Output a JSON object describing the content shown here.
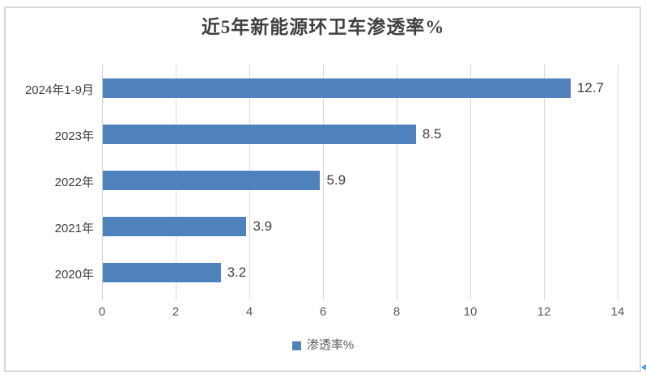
{
  "window": {
    "background": "#ffffff",
    "frame_border_color": "#d9d9d9"
  },
  "chart_data": {
    "type": "bar",
    "orientation": "horizontal",
    "title": "近5年新能源环卫车渗透率%",
    "categories": [
      "2024年1-9月",
      "2023年",
      "2022年",
      "2021年",
      "2020年"
    ],
    "values": [
      12.7,
      8.5,
      5.9,
      3.9,
      3.2
    ],
    "data_labels": [
      "12.7",
      "8.5",
      "5.9",
      "3.9",
      "3.2"
    ],
    "xlabel": "",
    "ylabel": "",
    "xlim": [
      0,
      14
    ],
    "xticks": [
      "0",
      "2",
      "4",
      "6",
      "8",
      "10",
      "12",
      "14"
    ],
    "grid": true,
    "legend": {
      "position": "bottom",
      "entries": [
        {
          "label": "渗透率%",
          "color": "#4f81bd"
        }
      ]
    },
    "colors": {
      "bar": "#4f81bd",
      "gridline": "#d9d9d9",
      "axis_line": "#d0d0d0",
      "title_text": "#404040",
      "category_text": "#404040",
      "value_text": "#404040",
      "tick_text": "#595959",
      "legend_text": "#595959"
    }
  },
  "decorations": {
    "corner_marker": "blue-cursor-arrow",
    "corner_marker_color": "#4b9fe0"
  }
}
